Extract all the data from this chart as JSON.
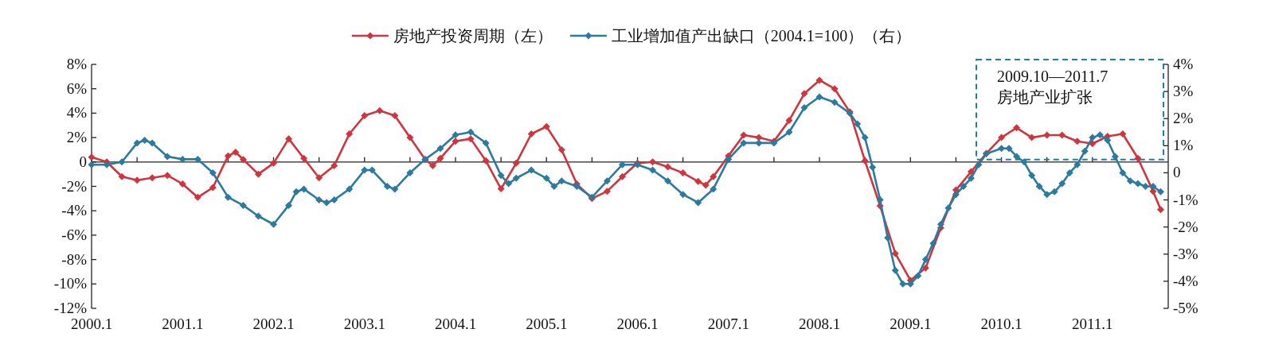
{
  "chart_data": {
    "type": "line",
    "marker": "diamond",
    "line_style": "solid",
    "legend": "top",
    "xlim": [
      "2000-01",
      "2011-11"
    ],
    "xticks": [
      {
        "value": "2000-01",
        "label": "2000.1"
      },
      {
        "value": "2000-07",
        "label": null
      },
      {
        "value": "2001-01",
        "label": "2001.1"
      },
      {
        "value": "2001-07",
        "label": null
      },
      {
        "value": "2002-01",
        "label": "2002.1"
      },
      {
        "value": "2002-07",
        "label": null
      },
      {
        "value": "2003-01",
        "label": "2003.1"
      },
      {
        "value": "2003-07",
        "label": null
      },
      {
        "value": "2004-01",
        "label": "2004.1"
      },
      {
        "value": "2004-07",
        "label": null
      },
      {
        "value": "2005-01",
        "label": "2005.1"
      },
      {
        "value": "2005-07",
        "label": null
      },
      {
        "value": "2006-01",
        "label": "2006.1"
      },
      {
        "value": "2006-07",
        "label": null
      },
      {
        "value": "2007-01",
        "label": "2007.1"
      },
      {
        "value": "2007-07",
        "label": null
      },
      {
        "value": "2008-01",
        "label": "2008.1"
      },
      {
        "value": "2008-07",
        "label": null
      },
      {
        "value": "2009-01",
        "label": "2009.1"
      },
      {
        "value": "2009-07",
        "label": null
      },
      {
        "value": "2010-01",
        "label": "2010.1"
      },
      {
        "value": "2010-07",
        "label": null
      },
      {
        "value": "2011-01",
        "label": "2011.1"
      },
      {
        "value": "2011-07",
        "label": null
      }
    ],
    "ylim": [
      -12,
      8
    ],
    "yticks": [
      {
        "value": -12,
        "label": "-12%"
      },
      {
        "value": -10,
        "label": "-10%"
      },
      {
        "value": -8,
        "label": "-8%"
      },
      {
        "value": -6,
        "label": "-6%"
      },
      {
        "value": -4,
        "label": "-4%"
      },
      {
        "value": -2,
        "label": "-2%"
      },
      0,
      {
        "value": 2,
        "label": "2%"
      },
      {
        "value": 4,
        "label": "4%"
      },
      {
        "value": 6,
        "label": "6%"
      },
      {
        "value": 8,
        "label": "8%"
      }
    ],
    "y2lim": [
      -5,
      4
    ],
    "y2ticks": [
      {
        "value": -5,
        "label": "-5%"
      },
      {
        "value": -4,
        "label": "-4%"
      },
      {
        "value": -3,
        "label": "-3%"
      },
      {
        "value": -2,
        "label": "-2%"
      },
      {
        "value": -1,
        "label": "-1%"
      },
      0,
      {
        "value": 1,
        "label": "1%"
      },
      {
        "value": 2,
        "label": "2%"
      },
      {
        "value": 3,
        "label": "3%"
      },
      {
        "value": 4,
        "label": "4%"
      }
    ],
    "annotations": [
      "2009.10—2011.7\n房地产业扩张"
    ],
    "series": [
      {
        "name": "房地产投资周期（左）",
        "color": "#d0343c",
        "x": [
          "2000-01",
          "2000-03",
          "2000-05",
          "2000-07",
          "2000-09",
          "2000-11",
          "2001-01",
          "2001-03",
          "2001-05",
          "2001-07",
          "2001-08",
          "2001-09",
          "2001-11",
          "2002-01",
          "2002-03",
          "2002-05",
          "2002-07",
          "2002-09",
          "2002-11",
          "2003-01",
          "2003-03",
          "2003-05",
          "2003-07",
          "2003-09",
          "2003-10",
          "2003-11",
          "2004-01",
          "2004-03",
          "2004-05",
          "2004-07",
          "2004-09",
          "2004-11",
          "2005-01",
          "2005-03",
          "2005-05",
          "2005-07",
          "2005-09",
          "2005-11",
          "2006-01",
          "2006-03",
          "2006-05",
          "2006-07",
          "2006-09",
          "2006-10",
          "2006-11",
          "2007-01",
          "2007-03",
          "2007-05",
          "2007-07",
          "2007-09",
          "2007-11",
          "2008-01",
          "2008-03",
          "2008-05",
          "2008-07",
          "2008-09",
          "2008-11",
          "2009-01",
          "2009-03",
          "2009-05",
          "2009-07",
          "2009-09",
          "2009-11",
          "2010-01",
          "2010-03",
          "2010-05",
          "2010-07",
          "2010-09",
          "2010-11",
          "2011-01",
          "2011-03",
          "2011-05",
          "2011-07",
          "2011-09",
          "2011-10"
        ],
        "values": [
          0.4,
          0,
          -1.2,
          -1.5,
          -1.3,
          -1.1,
          -1.8,
          -2.9,
          -2.1,
          0.5,
          0.8,
          0.2,
          -1.0,
          -0.1,
          1.9,
          0.3,
          -1.3,
          -0.3,
          2.3,
          3.8,
          4.2,
          3.8,
          2.0,
          0.2,
          -0.3,
          0.3,
          1.7,
          1.9,
          0.1,
          -2.2,
          -0.1,
          2.3,
          2.9,
          1.0,
          -1.8,
          -3.0,
          -2.4,
          -1.2,
          -0.1,
          0,
          -0.4,
          -0.9,
          -1.6,
          -1.9,
          -1.2,
          0.5,
          2.2,
          2.0,
          1.7,
          3.4,
          5.6,
          6.7,
          6.0,
          4.1,
          0.1,
          -3.6,
          -7.5,
          -9.7,
          -8.7,
          -5.4,
          -2.3,
          -0.8,
          0.7,
          2.0,
          2.8,
          2.0,
          2.2,
          2.2,
          1.7,
          1.5,
          2.1,
          2.3,
          0.3,
          -2.4,
          -3.9
        ]
      },
      {
        "name": "工业增加值产出缺口（2004.1=100）（右）",
        "color": "#2b7a9f",
        "axis": "y2",
        "x": [
          "2000-01",
          "2000-03",
          "2000-05",
          "2000-07",
          "2000-08",
          "2000-09",
          "2000-11",
          "2001-01",
          "2001-03",
          "2001-05",
          "2001-07",
          "2001-09",
          "2001-11",
          "2002-01",
          "2002-03",
          "2002-04",
          "2002-05",
          "2002-07",
          "2002-08",
          "2002-09",
          "2002-11",
          "2003-01",
          "2003-02",
          "2003-04",
          "2003-05",
          "2003-07",
          "2003-09",
          "2003-11",
          "2004-01",
          "2004-03",
          "2004-05",
          "2004-07",
          "2004-08",
          "2004-09",
          "2004-11",
          "2005-01",
          "2005-02",
          "2005-03",
          "2005-05",
          "2005-07",
          "2005-09",
          "2005-11",
          "2006-01",
          "2006-03",
          "2006-05",
          "2006-07",
          "2006-09",
          "2006-11",
          "2007-01",
          "2007-03",
          "2007-05",
          "2007-07",
          "2007-09",
          "2007-11",
          "2008-01",
          "2008-03",
          "2008-05",
          "2008-06",
          "2008-07",
          "2008-08",
          "2008-09",
          "2008-10",
          "2008-11",
          "2008-12",
          "2009-01",
          "2009-02",
          "2009-03",
          "2009-04",
          "2009-05",
          "2009-06",
          "2009-07",
          "2009-08",
          "2009-09",
          "2009-10",
          "2009-11",
          "2010-01",
          "2010-02",
          "2010-03",
          "2010-04",
          "2010-05",
          "2010-06",
          "2010-07",
          "2010-08",
          "2010-09",
          "2010-10",
          "2010-11",
          "2010-12",
          "2011-01",
          "2011-02",
          "2011-03",
          "2011-04",
          "2011-05",
          "2011-06",
          "2011-07",
          "2011-08",
          "2011-09",
          "2011-10"
        ],
        "values": [
          0.3,
          0.3,
          0.4,
          1.1,
          1.2,
          1.1,
          0.6,
          0.5,
          0.5,
          0,
          -0.9,
          -1.2,
          -1.6,
          -1.9,
          -1.2,
          -0.7,
          -0.6,
          -1.0,
          -1.1,
          -1.0,
          -0.6,
          0.1,
          0.1,
          -0.5,
          -0.6,
          0,
          0.5,
          0.9,
          1.4,
          1.5,
          1.1,
          -0.1,
          -0.4,
          -0.2,
          0.1,
          -0.2,
          -0.5,
          -0.3,
          -0.5,
          -0.9,
          -0.3,
          0.3,
          0.3,
          0.1,
          -0.3,
          -0.8,
          -1.1,
          -0.6,
          0.5,
          1.1,
          1.1,
          1.1,
          1.5,
          2.4,
          2.8,
          2.6,
          2.2,
          1.8,
          1.3,
          0.2,
          -1.0,
          -2.4,
          -3.6,
          -4.1,
          -4.1,
          -3.8,
          -3.2,
          -2.6,
          -1.9,
          -1.3,
          -0.8,
          -0.5,
          -0.2,
          0.3,
          0.7,
          0.9,
          0.9,
          0.6,
          0.4,
          -0.1,
          -0.5,
          -0.8,
          -0.7,
          -0.4,
          0,
          0.3,
          0.8,
          1.3,
          1.4,
          1.2,
          0.6,
          0,
          -0.3,
          -0.4,
          -0.5,
          -0.5,
          -0.7
        ]
      }
    ]
  }
}
